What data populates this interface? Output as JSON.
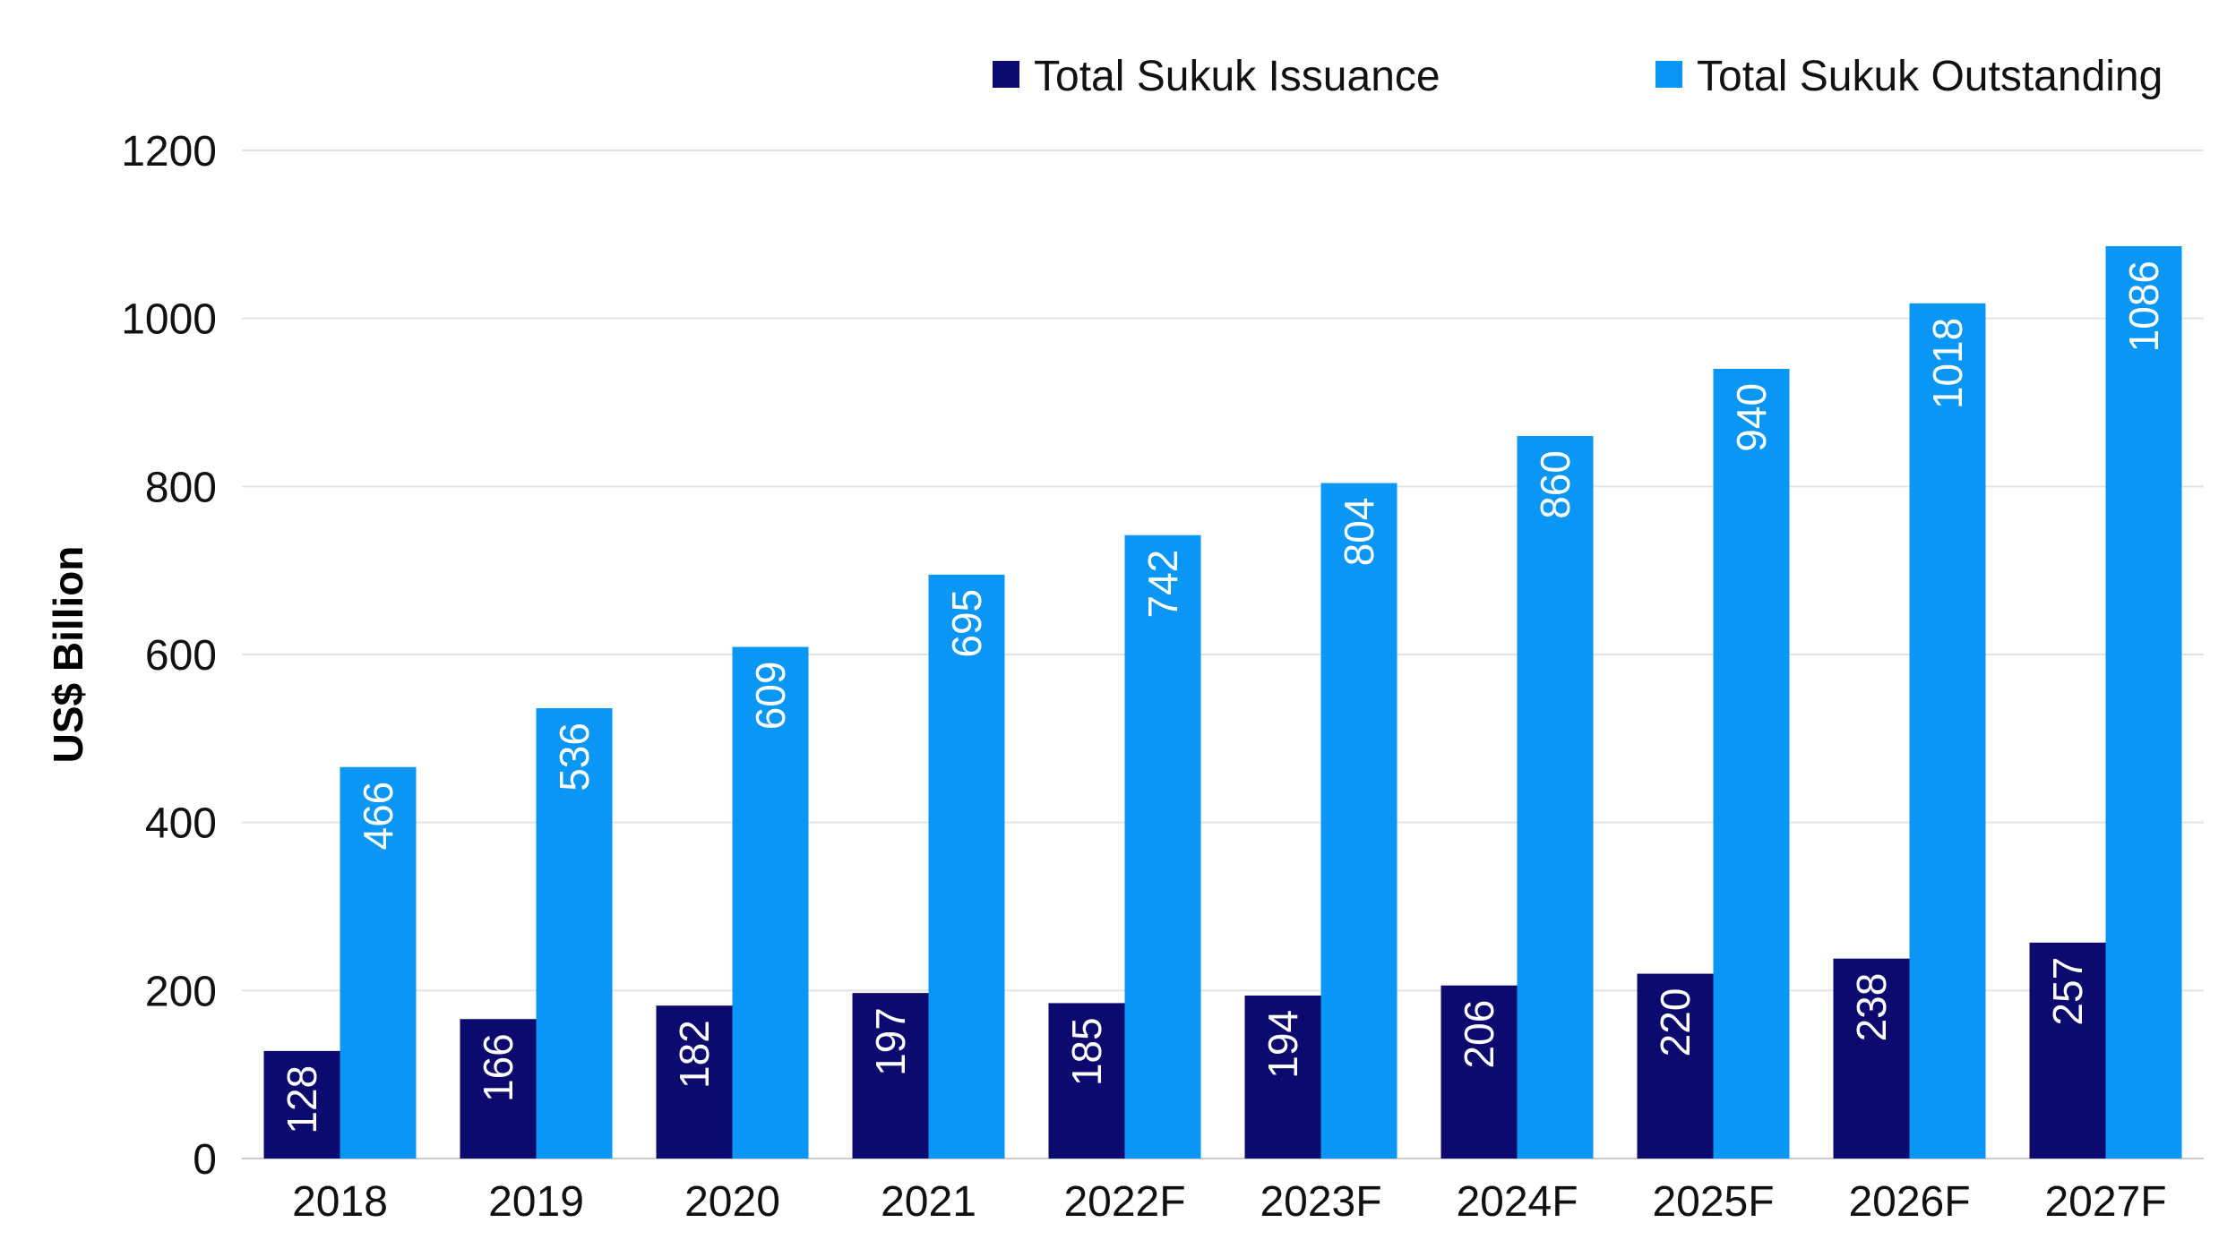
{
  "chart_data": {
    "type": "bar",
    "title": "",
    "xlabel": "",
    "ylabel": "US$ Billion",
    "ylim": [
      0,
      1200
    ],
    "yticks": [
      0,
      200,
      400,
      600,
      800,
      1000,
      1200
    ],
    "grid": true,
    "legend_position": "top-right",
    "categories": [
      "2018",
      "2019",
      "2020",
      "2021",
      "2022F",
      "2023F",
      "2024F",
      "2025F",
      "2026F",
      "2027F"
    ],
    "series": [
      {
        "name": "Total Sukuk Issuance",
        "color": "#0c0a6e",
        "values": [
          128,
          166,
          182,
          197,
          185,
          194,
          206,
          220,
          238,
          257
        ]
      },
      {
        "name": "Total Sukuk Outstanding",
        "color": "#0a96f5",
        "values": [
          466,
          536,
          609,
          695,
          742,
          804,
          860,
          940,
          1018,
          1086
        ]
      }
    ],
    "gridline_color": "#e3e3e3",
    "axis_color": "#cccccc"
  }
}
